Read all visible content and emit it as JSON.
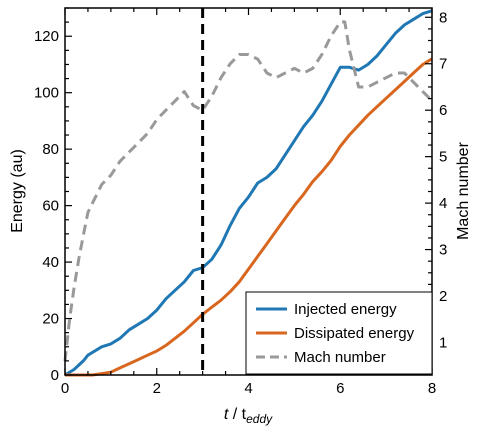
{
  "chart_data": {
    "type": "line",
    "x_label": {
      "italic": "t",
      "sep": " / t",
      "sub": "eddy"
    },
    "y_label_left": "Energy (au)",
    "y_label_right": "Mach number",
    "xlim": [
      0,
      8
    ],
    "ylim_left": [
      0,
      130
    ],
    "ylim_right": [
      0.3,
      8.2
    ],
    "x_ticks": [
      0,
      2,
      4,
      6,
      8
    ],
    "y_ticks_left": [
      0,
      20,
      40,
      60,
      80,
      100,
      120
    ],
    "y_ticks_right": [
      1,
      2,
      3,
      4,
      5,
      6,
      7,
      8
    ],
    "grid": false,
    "vline_x": 3.0,
    "legend_position": "bottom-right",
    "series": [
      {
        "name": "Injected energy",
        "axis": "left",
        "color": "#1f77b4",
        "style": "solid",
        "x": [
          0,
          0.2,
          0.4,
          0.5,
          0.6,
          0.8,
          1.0,
          1.2,
          1.4,
          1.6,
          1.8,
          2.0,
          2.2,
          2.4,
          2.6,
          2.8,
          3.0,
          3.2,
          3.4,
          3.6,
          3.8,
          4.0,
          4.2,
          4.4,
          4.6,
          4.8,
          5.0,
          5.2,
          5.4,
          5.6,
          5.8,
          6.0,
          6.2,
          6.4,
          6.6,
          6.8,
          7.0,
          7.2,
          7.4,
          7.6,
          7.8,
          8.0
        ],
        "y": [
          0,
          2,
          5,
          7,
          8,
          10,
          11,
          13,
          16,
          18,
          20,
          23,
          27,
          30,
          33,
          37,
          38,
          41,
          46,
          53,
          59,
          63,
          68,
          70,
          73,
          78,
          83,
          88,
          92,
          97,
          103,
          109,
          109,
          108,
          110,
          113,
          117,
          121,
          124,
          126,
          128,
          129
        ]
      },
      {
        "name": "Dissipated energy",
        "axis": "left",
        "color": "#d9661f",
        "style": "solid",
        "x": [
          0,
          0.6,
          0.8,
          1.0,
          1.2,
          1.4,
          1.6,
          1.8,
          2.0,
          2.2,
          2.4,
          2.6,
          2.8,
          3.0,
          3.2,
          3.4,
          3.6,
          3.8,
          4.0,
          4.2,
          4.4,
          4.6,
          4.8,
          5.0,
          5.2,
          5.4,
          5.6,
          5.8,
          6.0,
          6.2,
          6.4,
          6.6,
          6.8,
          7.0,
          7.2,
          7.4,
          7.6,
          7.8,
          8.0
        ],
        "y": [
          0,
          0,
          0.5,
          1,
          2.5,
          4,
          5.5,
          7,
          8.5,
          10.5,
          13,
          15.5,
          18.5,
          21.5,
          24,
          26.5,
          29.5,
          33,
          37.5,
          42,
          46.5,
          51,
          55.5,
          60,
          64,
          68.5,
          72,
          76,
          81,
          85,
          88.5,
          92,
          95,
          98,
          101,
          104,
          107,
          110,
          112
        ]
      },
      {
        "name": "Mach number",
        "axis": "right",
        "color": "#999999",
        "style": "dashed",
        "x": [
          0,
          0.1,
          0.2,
          0.3,
          0.4,
          0.5,
          0.6,
          0.8,
          1.0,
          1.2,
          1.4,
          1.6,
          1.8,
          2.0,
          2.2,
          2.4,
          2.6,
          2.8,
          3.0,
          3.2,
          3.4,
          3.6,
          3.8,
          4.0,
          4.2,
          4.4,
          4.6,
          4.8,
          5.0,
          5.2,
          5.4,
          5.6,
          5.8,
          6.0,
          6.1,
          6.2,
          6.4,
          6.6,
          6.8,
          7.0,
          7.2,
          7.4,
          7.6,
          7.8,
          8.0
        ],
        "y": [
          0.6,
          1.5,
          2.2,
          2.8,
          3.3,
          3.8,
          4.0,
          4.4,
          4.6,
          4.9,
          5.1,
          5.3,
          5.5,
          5.8,
          6.0,
          6.2,
          6.4,
          6.1,
          6.0,
          6.3,
          6.7,
          7.0,
          7.2,
          7.2,
          7.1,
          6.8,
          6.7,
          6.8,
          6.9,
          6.8,
          6.9,
          7.2,
          7.6,
          7.9,
          7.9,
          7.3,
          6.5,
          6.5,
          6.6,
          6.7,
          6.8,
          6.8,
          6.6,
          6.4,
          6.2
        ]
      }
    ]
  }
}
